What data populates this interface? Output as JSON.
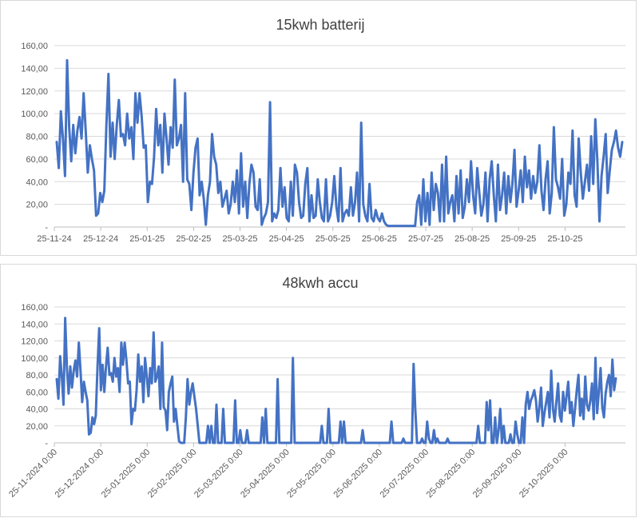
{
  "series_color": "#4472C4",
  "chart_data": [
    {
      "type": "line",
      "title": "15kwh batterij",
      "ylim": [
        0,
        160
      ],
      "ytick_labels": [
        "-",
        "20,00",
        "40,00",
        "60,00",
        "80,00",
        "100,00",
        "120,00",
        "140,00",
        "160,00"
      ],
      "xtick_labels": [
        "25-11-24",
        "25-12-24",
        "25-01-25",
        "25-02-25",
        "25-03-25",
        "25-04-25",
        "25-05-25",
        "25-06-25",
        "25-07-25",
        "25-08-25",
        "25-09-25",
        "25-10-25"
      ],
      "xtick_rotated": false,
      "grid": true,
      "legend": "none",
      "series": [
        {
          "values": [
            75,
            52,
            102,
            78,
            45,
            147,
            88,
            58,
            90,
            65,
            85,
            97,
            78,
            118,
            85,
            48,
            72,
            60,
            50,
            10,
            12,
            30,
            22,
            32,
            90,
            135,
            62,
            92,
            60,
            90,
            112,
            80,
            82,
            72,
            100,
            78,
            88,
            60,
            118,
            92,
            118,
            98,
            70,
            72,
            22,
            40,
            38,
            62,
            104,
            72,
            90,
            48,
            100,
            78,
            55,
            88,
            70,
            130,
            72,
            78,
            90,
            40,
            118,
            42,
            38,
            15,
            48,
            70,
            78,
            28,
            40,
            25,
            2,
            28,
            40,
            82,
            62,
            55,
            30,
            40,
            18,
            25,
            32,
            12,
            20,
            40,
            22,
            50,
            12,
            65,
            18,
            40,
            8,
            38,
            55,
            48,
            18,
            15,
            42,
            2,
            8,
            12,
            22,
            110,
            5,
            12,
            8,
            15,
            52,
            18,
            35,
            8,
            5,
            40,
            10,
            55,
            48,
            22,
            8,
            10,
            38,
            52,
            5,
            28,
            8,
            10,
            42,
            22,
            8,
            5,
            42,
            5,
            10,
            22,
            45,
            18,
            5,
            52,
            5,
            12,
            15,
            10,
            35,
            10,
            22,
            48,
            5,
            92,
            20,
            10,
            5,
            38,
            8,
            5,
            15,
            8,
            5,
            12,
            5,
            2,
            1,
            1,
            1,
            1,
            1,
            1,
            1,
            1,
            1,
            1,
            1,
            1,
            1,
            1,
            22,
            28,
            2,
            42,
            5,
            30,
            2,
            48,
            15,
            38,
            30,
            5,
            55,
            5,
            62,
            12,
            22,
            28,
            5,
            45,
            12,
            50,
            8,
            18,
            42,
            22,
            58,
            28,
            12,
            52,
            30,
            10,
            20,
            48,
            5,
            42,
            58,
            28,
            5,
            55,
            15,
            28,
            48,
            12,
            45,
            22,
            38,
            68,
            18,
            32,
            50,
            22,
            62,
            35,
            50,
            25,
            45,
            30,
            40,
            72,
            32,
            15,
            42,
            58,
            12,
            30,
            88,
            42,
            35,
            25,
            60,
            10,
            20,
            48,
            38,
            85,
            28,
            18,
            78,
            48,
            25,
            40,
            55,
            32,
            80,
            38,
            95,
            58,
            5,
            45,
            62,
            82,
            30,
            50,
            68,
            75,
            85,
            70,
            62,
            75
          ]
        }
      ]
    },
    {
      "type": "line",
      "title": "48kwh accu",
      "ylim": [
        0,
        160
      ],
      "ytick_labels": [
        "-",
        "20,00",
        "40,00",
        "60,00",
        "80,00",
        "100,00",
        "120,00",
        "140,00",
        "160,00"
      ],
      "xtick_labels": [
        "25-11-2024 0:00",
        "25-12-2024 0:00",
        "25-01-2025 0:00",
        "25-02-2025 0:00",
        "25-03-2025 0:00",
        "25-04-2025 0:00",
        "25-05-2025 0:00",
        "25-06-2025 0:00",
        "25-07-2025 0:00",
        "25-08-2025 0:00",
        "25-09-2025 0:00",
        "25-10-2025 0:00"
      ],
      "xtick_rotated": true,
      "grid": true,
      "legend": "none",
      "series": [
        {
          "values": [
            75,
            52,
            102,
            78,
            45,
            147,
            88,
            58,
            90,
            65,
            85,
            97,
            78,
            118,
            85,
            48,
            72,
            60,
            50,
            10,
            12,
            30,
            22,
            32,
            90,
            135,
            62,
            92,
            60,
            90,
            112,
            80,
            82,
            72,
            100,
            78,
            88,
            60,
            118,
            92,
            118,
            98,
            70,
            72,
            22,
            40,
            38,
            62,
            104,
            72,
            90,
            48,
            100,
            78,
            55,
            88,
            70,
            130,
            72,
            78,
            90,
            40,
            118,
            42,
            38,
            15,
            60,
            70,
            78,
            25,
            40,
            20,
            2,
            0,
            0,
            0,
            30,
            75,
            45,
            60,
            70,
            55,
            40,
            20,
            0,
            0,
            0,
            0,
            0,
            20,
            0,
            20,
            0,
            0,
            45,
            0,
            0,
            0,
            40,
            0,
            0,
            0,
            0,
            0,
            0,
            50,
            0,
            0,
            15,
            0,
            0,
            0,
            15,
            0,
            0,
            0,
            0,
            0,
            0,
            0,
            0,
            30,
            0,
            40,
            0,
            0,
            0,
            0,
            0,
            0,
            75,
            0,
            0,
            0,
            0,
            0,
            0,
            0,
            0,
            100,
            0,
            0,
            0,
            0,
            0,
            0,
            0,
            0,
            0,
            0,
            0,
            0,
            0,
            0,
            0,
            0,
            20,
            0,
            0,
            0,
            40,
            0,
            0,
            0,
            0,
            0,
            0,
            25,
            0,
            25,
            0,
            0,
            0,
            0,
            0,
            0,
            0,
            0,
            0,
            0,
            15,
            0,
            0,
            0,
            0,
            0,
            0,
            0,
            0,
            0,
            0,
            0,
            0,
            0,
            0,
            0,
            0,
            25,
            0,
            0,
            0,
            0,
            0,
            0,
            5,
            0,
            0,
            0,
            0,
            0,
            93,
            40,
            0,
            0,
            0,
            5,
            0,
            0,
            25,
            5,
            0,
            0,
            15,
            0,
            5,
            0,
            0,
            0,
            0,
            0,
            5,
            0,
            0,
            0,
            0,
            0,
            0,
            0,
            0,
            0,
            0,
            0,
            0,
            0,
            0,
            0,
            0,
            0,
            20,
            0,
            0,
            0,
            0,
            48,
            15,
            50,
            0,
            0,
            30,
            0,
            15,
            40,
            0,
            20,
            0,
            0,
            0,
            10,
            0,
            0,
            25,
            10,
            0,
            0,
            30,
            0,
            45,
            60,
            40,
            50,
            55,
            62,
            50,
            25,
            42,
            65,
            20,
            35,
            48,
            60,
            30,
            85,
            40,
            25,
            48,
            70,
            32,
            25,
            60,
            38,
            55,
            72,
            35,
            48,
            20,
            40,
            62,
            80,
            32,
            52,
            28,
            78,
            45,
            38,
            50,
            70,
            28,
            100,
            35,
            60,
            88,
            42,
            30,
            58,
            72,
            80,
            55,
            98,
            62,
            76
          ]
        }
      ]
    }
  ]
}
